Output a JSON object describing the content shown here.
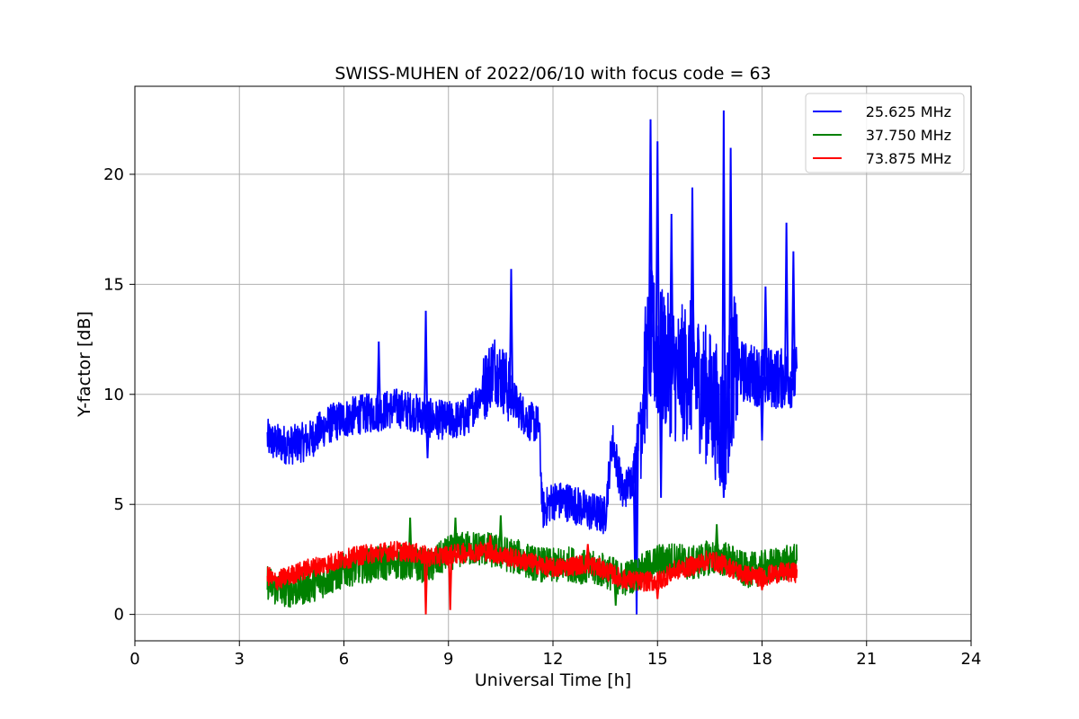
{
  "chart_data": {
    "type": "line",
    "title": "SWISS-MUHEN of 2022/06/10 with focus code = 63",
    "xlabel": "Universal Time [h]",
    "ylabel": "Y-factor [dB]",
    "xlim": [
      0,
      24
    ],
    "ylim": [
      -1.2,
      24
    ],
    "xticks": [
      0,
      3,
      6,
      9,
      12,
      15,
      18,
      21,
      24
    ],
    "yticks": [
      0,
      5,
      10,
      15,
      20
    ],
    "grid": true,
    "legend_position": "top-right",
    "series": [
      {
        "name": "25.625 MHz",
        "color": "#0000ff",
        "x": [
          3.8,
          4.0,
          4.5,
          5.0,
          5.5,
          6.0,
          6.5,
          7.0,
          7.5,
          8.0,
          8.3,
          8.5,
          9.0,
          9.5,
          10.0,
          10.3,
          10.6,
          11.0,
          11.3,
          11.6,
          11.7,
          12.0,
          12.5,
          13.0,
          13.5,
          13.7,
          14.0,
          14.3,
          14.6,
          14.8,
          15.0,
          15.3,
          15.6,
          16.0,
          16.3,
          16.6,
          16.9,
          17.2,
          17.5,
          18.0,
          18.5,
          19.0
        ],
        "values": [
          8.0,
          7.8,
          7.7,
          7.9,
          8.6,
          8.9,
          9.1,
          9.2,
          9.4,
          9.2,
          9.0,
          8.9,
          8.8,
          8.9,
          10.2,
          11.3,
          10.6,
          9.4,
          8.8,
          8.6,
          4.7,
          5.2,
          5.1,
          4.7,
          4.5,
          8.0,
          5.5,
          6.3,
          10.3,
          12.6,
          11.8,
          11.4,
          10.8,
          11.2,
          10.2,
          9.6,
          8.2,
          11.3,
          11.0,
          10.8,
          10.7,
          10.8
        ],
        "spikes": [
          {
            "x": 7.0,
            "y": 12.4
          },
          {
            "x": 8.35,
            "y": 13.8
          },
          {
            "x": 10.8,
            "y": 15.7
          },
          {
            "x": 14.8,
            "y": 22.5
          },
          {
            "x": 15.0,
            "y": 21.5
          },
          {
            "x": 15.4,
            "y": 18.2
          },
          {
            "x": 16.0,
            "y": 19.4
          },
          {
            "x": 16.9,
            "y": 22.9
          },
          {
            "x": 17.1,
            "y": 21.2
          },
          {
            "x": 18.1,
            "y": 14.9
          },
          {
            "x": 18.7,
            "y": 17.8
          },
          {
            "x": 18.9,
            "y": 16.5
          }
        ],
        "dips": [
          {
            "x": 8.4,
            "y": 7.1
          },
          {
            "x": 14.35,
            "y": 2.3
          },
          {
            "x": 14.4,
            "y": 0.0
          },
          {
            "x": 15.1,
            "y": 5.3
          },
          {
            "x": 16.9,
            "y": 5.3
          },
          {
            "x": 18.0,
            "y": 7.9
          }
        ]
      },
      {
        "name": "37.750 MHz",
        "color": "#008000",
        "x": [
          3.8,
          4.0,
          4.5,
          5.0,
          5.5,
          6.0,
          6.5,
          7.0,
          7.5,
          8.0,
          8.5,
          9.0,
          9.5,
          10.0,
          10.5,
          11.0,
          11.5,
          12.0,
          12.5,
          13.0,
          13.5,
          14.0,
          14.5,
          15.0,
          15.5,
          16.0,
          16.5,
          17.0,
          17.5,
          18.0,
          18.5,
          19.0
        ],
        "values": [
          1.5,
          1.2,
          1.1,
          1.3,
          1.6,
          2.0,
          2.2,
          2.3,
          2.4,
          2.3,
          2.2,
          2.8,
          3.0,
          3.0,
          2.8,
          2.6,
          2.3,
          2.2,
          2.3,
          2.1,
          2.0,
          1.6,
          1.9,
          2.4,
          2.5,
          2.3,
          2.6,
          2.5,
          2.0,
          2.1,
          2.3,
          2.4
        ],
        "spikes": [
          {
            "x": 7.9,
            "y": 4.4
          },
          {
            "x": 9.2,
            "y": 4.4
          },
          {
            "x": 10.5,
            "y": 4.5
          },
          {
            "x": 16.7,
            "y": 4.1
          }
        ],
        "dips": [
          {
            "x": 4.3,
            "y": 0.5
          },
          {
            "x": 13.8,
            "y": 0.4
          }
        ]
      },
      {
        "name": "73.875 MHz",
        "color": "#ff0000",
        "x": [
          3.8,
          4.0,
          4.5,
          5.0,
          5.5,
          6.0,
          6.5,
          7.0,
          7.5,
          8.0,
          8.5,
          9.0,
          9.5,
          10.0,
          10.5,
          11.0,
          11.5,
          12.0,
          12.5,
          13.0,
          13.5,
          14.0,
          14.5,
          15.0,
          15.5,
          16.0,
          16.5,
          17.0,
          17.5,
          18.0,
          18.5,
          19.0
        ],
        "values": [
          1.8,
          1.5,
          1.8,
          2.1,
          2.3,
          2.5,
          2.7,
          2.8,
          2.9,
          2.8,
          2.6,
          2.7,
          2.8,
          2.9,
          2.7,
          2.5,
          2.3,
          2.1,
          2.2,
          2.3,
          2.0,
          1.6,
          1.5,
          1.5,
          2.0,
          2.2,
          2.5,
          2.2,
          1.8,
          1.7,
          1.9,
          1.9
        ],
        "spikes": [
          {
            "x": 10.2,
            "y": 3.6
          },
          {
            "x": 13.0,
            "y": 3.2
          }
        ],
        "dips": [
          {
            "x": 8.35,
            "y": 0.0
          },
          {
            "x": 9.05,
            "y": 0.2
          },
          {
            "x": 15.0,
            "y": 0.7
          },
          {
            "x": 18.0,
            "y": 1.1
          }
        ]
      }
    ]
  }
}
